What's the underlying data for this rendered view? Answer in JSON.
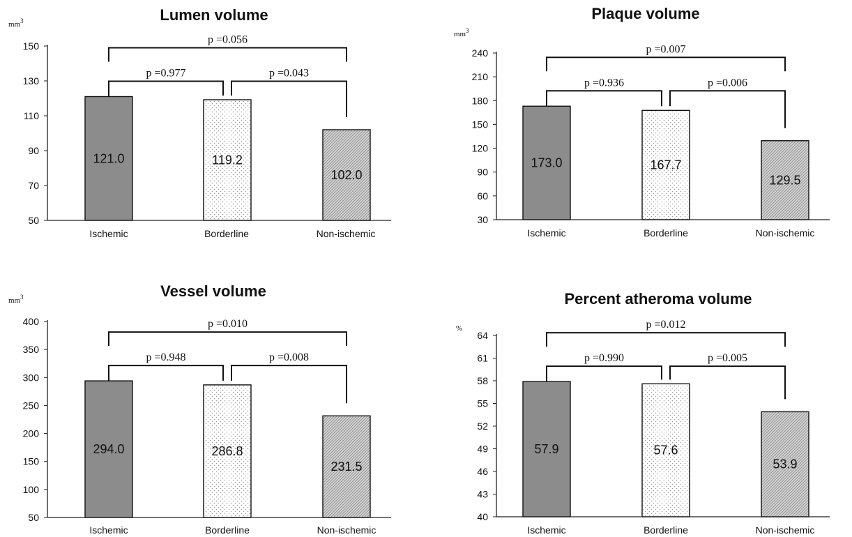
{
  "chart_data": [
    {
      "type": "bar",
      "title": "Lumen volume",
      "unit": "mm3",
      "categories": [
        "Ischemic",
        "Borderline",
        "Non-ischemic"
      ],
      "values": [
        121.0,
        119.2,
        102.0
      ],
      "value_labels": [
        "121.0",
        "119.2",
        "102.0"
      ],
      "ylim": [
        50,
        150
      ],
      "yticks": [
        50,
        70,
        90,
        110,
        130,
        150
      ],
      "ytick_labels": [
        "50",
        "70",
        "90",
        "110",
        "130",
        "150"
      ],
      "comparisons": [
        {
          "between": [
            "Ischemic",
            "Borderline"
          ],
          "label": "p =0.977"
        },
        {
          "between": [
            "Borderline",
            "Non-ischemic"
          ],
          "label": "p =0.043"
        },
        {
          "between": [
            "Ischemic",
            "Non-ischemic"
          ],
          "label": "p =0.056"
        }
      ],
      "grid": false
    },
    {
      "type": "bar",
      "title": "Plaque volume",
      "unit": "mm3",
      "categories": [
        "Ischemic",
        "Borderline",
        "Non-ischemic"
      ],
      "values": [
        173.0,
        167.7,
        129.5
      ],
      "value_labels": [
        "173.0",
        "167.7",
        "129.5"
      ],
      "ylim": [
        30,
        240
      ],
      "yticks": [
        30,
        60,
        90,
        120,
        150,
        180,
        210,
        240
      ],
      "ytick_labels": [
        "30",
        "60",
        "90",
        "120",
        "150",
        "180",
        "210",
        "240"
      ],
      "comparisons": [
        {
          "between": [
            "Ischemic",
            "Borderline"
          ],
          "label": "p =0.936"
        },
        {
          "between": [
            "Borderline",
            "Non-ischemic"
          ],
          "label": "p =0.006"
        },
        {
          "between": [
            "Ischemic",
            "Non-ischemic"
          ],
          "label": "p =0.007"
        }
      ],
      "grid": false
    },
    {
      "type": "bar",
      "title": "Vessel volume",
      "unit": "mm3",
      "categories": [
        "Ischemic",
        "Borderline",
        "Non-ischemic"
      ],
      "values": [
        294.0,
        286.8,
        231.5
      ],
      "value_labels": [
        "294.0",
        "286.8",
        "231.5"
      ],
      "ylim": [
        50,
        400
      ],
      "yticks": [
        50,
        100,
        150,
        200,
        250,
        300,
        350,
        400
      ],
      "ytick_labels": [
        "50",
        "100",
        "150",
        "200",
        "250",
        "300",
        "350",
        "400"
      ],
      "comparisons": [
        {
          "between": [
            "Ischemic",
            "Borderline"
          ],
          "label": "p =0.948"
        },
        {
          "between": [
            "Borderline",
            "Non-ischemic"
          ],
          "label": "p =0.008"
        },
        {
          "between": [
            "Ischemic",
            "Non-ischemic"
          ],
          "label": "p =0.010"
        }
      ],
      "grid": false
    },
    {
      "type": "bar",
      "title": "Percent atheroma volume",
      "unit": "%",
      "categories": [
        "Ischemic",
        "Borderline",
        "Non-ischemic"
      ],
      "values": [
        57.9,
        57.6,
        53.9
      ],
      "value_labels": [
        "57.9",
        "57.6",
        "53.9"
      ],
      "ylim": [
        40,
        64
      ],
      "yticks": [
        40,
        43,
        46,
        49,
        52,
        55,
        58,
        61,
        64
      ],
      "ytick_labels": [
        "40",
        "43",
        "46",
        "49",
        "52",
        "55",
        "58",
        "61",
        "64"
      ],
      "comparisons": [
        {
          "between": [
            "Ischemic",
            "Borderline"
          ],
          "label": "p =0.990"
        },
        {
          "between": [
            "Borderline",
            "Non-ischemic"
          ],
          "label": "p =0.005"
        },
        {
          "between": [
            "Ischemic",
            "Non-ischemic"
          ],
          "label": "p =0.012"
        }
      ],
      "grid": false
    }
  ],
  "colors": {
    "ischemic_fill": "#8c8c8c",
    "borderline_fill": "#ffffff",
    "borderline_dots": "#9a9a9a",
    "nonischemic_fill": "#d6d6d6",
    "nonischemic_hatch": "#8a8a8a",
    "ink": "#111111"
  }
}
